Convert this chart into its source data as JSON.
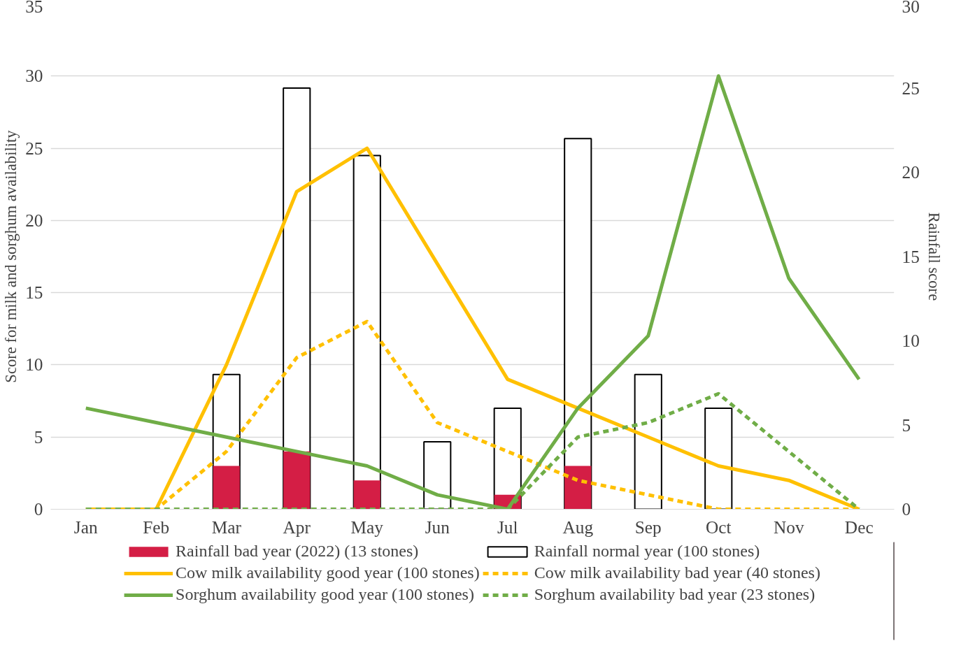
{
  "chart_data": {
    "type": "line",
    "categories": [
      "Jan",
      "Feb",
      "Mar",
      "Apr",
      "May",
      "Jun",
      "Jul",
      "Aug",
      "Sep",
      "Oct",
      "Nov",
      "Dec"
    ],
    "ylabel": "Score for milk and sorghum availability",
    "y2label": "Rainfall score",
    "ylim": [
      0,
      35
    ],
    "yticks": [
      0,
      5,
      10,
      15,
      20,
      25,
      30,
      35
    ],
    "y2lim": [
      0,
      30
    ],
    "y2ticks": [
      0,
      5,
      10,
      15,
      20,
      25,
      30
    ],
    "grid": "y",
    "legend": "bottom",
    "marker": "none",
    "series": [
      {
        "name": "Rainfall bad year (2022) (13 stones)",
        "type": "bar",
        "color": "#d41e45",
        "values": [
          0,
          0,
          3,
          4,
          2,
          0,
          1,
          3,
          0,
          0,
          0,
          0
        ]
      },
      {
        "name": "Rainfall normal year (100 stones)",
        "type": "bar",
        "axis": "y2",
        "color": "#ffffff",
        "values": [
          0,
          0,
          8,
          25,
          21,
          4,
          6,
          22,
          8,
          6,
          0,
          0
        ]
      },
      {
        "name": "Cow milk availability good year (100 stones)",
        "type": "line",
        "color": "#ffc000",
        "line_style": "solid",
        "values": [
          0,
          0,
          10,
          22,
          25,
          17,
          9,
          7,
          5,
          3,
          2,
          0
        ]
      },
      {
        "name": "Cow milk availability bad year (40 stones)",
        "type": "line",
        "color": "#ffc000",
        "line_style": "dashed",
        "values": [
          0,
          0,
          4,
          10.5,
          13,
          6,
          4,
          2,
          1,
          0,
          0,
          0
        ]
      },
      {
        "name": "Sorghum availability good year (100 stones)",
        "color": "#70ad47",
        "line_style": "solid",
        "values": [
          7,
          6,
          5,
          4,
          3,
          1,
          0,
          7,
          12,
          30,
          16,
          9
        ]
      },
      {
        "name": "Sorghum availability bad year (23 stones)",
        "type": "line",
        "color": "#70ad47",
        "line_style": "dashed",
        "values": [
          0,
          0,
          0,
          0,
          0,
          0,
          0,
          5,
          6,
          8,
          4,
          0
        ]
      }
    ]
  }
}
